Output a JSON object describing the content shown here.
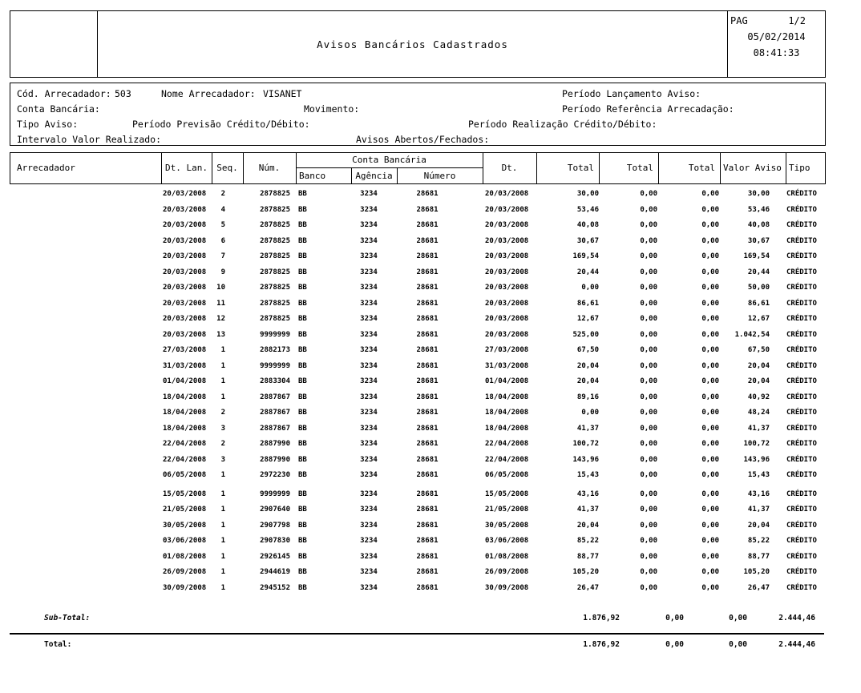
{
  "header": {
    "title": "Avisos Bancários Cadastrados",
    "pag_label": "PAG",
    "page_value": "1/2",
    "date": "05/02/2014",
    "time": "08:41:33"
  },
  "filters": {
    "cod_arrecadador_label": "Cód. Arrecadador:",
    "cod_arrecadador_value": "503",
    "nome_arrecadador_label": "Nome Arrecadador:",
    "nome_arrecadador_value": "VISANET",
    "periodo_lancamento_label": "Período Lançamento Aviso:",
    "conta_bancaria_label": "Conta Bancária:",
    "movimento_label": "Movimento:",
    "periodo_referencia_label": "Período Referência Arrecadação:",
    "tipo_aviso_label": "Tipo Aviso:",
    "periodo_previsao_label": "Período Previsão Crédito/Débito:",
    "periodo_realizacao_label": "Período Realização Crédito/Débito:",
    "intervalo_valor_label": "Intervalo Valor Realizado:",
    "avisos_abertos_label": "Avisos Abertos/Fechados:"
  },
  "table": {
    "columns": {
      "arrecadador": "Arrecadador",
      "dt_lan": "Dt. Lan.",
      "seq": "Seq.",
      "num": "Núm.",
      "conta_bancaria_group": "Conta Bancária",
      "banco": "Banco",
      "agencia": "Agência",
      "numero": "Número",
      "dt": "Dt.",
      "total1": "Total",
      "total2": "Total",
      "total3": "Total",
      "valor_aviso": "Valor Aviso",
      "tipo": "Tipo"
    },
    "rows": [
      {
        "dt_lan": "20/03/2008",
        "seq": "2",
        "num": "2878825",
        "banco": "BB",
        "agencia": "3234",
        "numero": "28681",
        "dt": "20/03/2008",
        "total1": "30,00",
        "total2": "0,00",
        "total3": "0,00",
        "valor_aviso": "30,00",
        "tipo": "CRÉDITO"
      },
      {
        "dt_lan": "20/03/2008",
        "seq": "4",
        "num": "2878825",
        "banco": "BB",
        "agencia": "3234",
        "numero": "28681",
        "dt": "20/03/2008",
        "total1": "53,46",
        "total2": "0,00",
        "total3": "0,00",
        "valor_aviso": "53,46",
        "tipo": "CRÉDITO"
      },
      {
        "dt_lan": "20/03/2008",
        "seq": "5",
        "num": "2878825",
        "banco": "BB",
        "agencia": "3234",
        "numero": "28681",
        "dt": "20/03/2008",
        "total1": "40,08",
        "total2": "0,00",
        "total3": "0,00",
        "valor_aviso": "40,08",
        "tipo": "CRÉDITO"
      },
      {
        "dt_lan": "20/03/2008",
        "seq": "6",
        "num": "2878825",
        "banco": "BB",
        "agencia": "3234",
        "numero": "28681",
        "dt": "20/03/2008",
        "total1": "30,67",
        "total2": "0,00",
        "total3": "0,00",
        "valor_aviso": "30,67",
        "tipo": "CRÉDITO"
      },
      {
        "dt_lan": "20/03/2008",
        "seq": "7",
        "num": "2878825",
        "banco": "BB",
        "agencia": "3234",
        "numero": "28681",
        "dt": "20/03/2008",
        "total1": "169,54",
        "total2": "0,00",
        "total3": "0,00",
        "valor_aviso": "169,54",
        "tipo": "CRÉDITO"
      },
      {
        "dt_lan": "20/03/2008",
        "seq": "9",
        "num": "2878825",
        "banco": "BB",
        "agencia": "3234",
        "numero": "28681",
        "dt": "20/03/2008",
        "total1": "20,44",
        "total2": "0,00",
        "total3": "0,00",
        "valor_aviso": "20,44",
        "tipo": "CRÉDITO"
      },
      {
        "dt_lan": "20/03/2008",
        "seq": "10",
        "num": "2878825",
        "banco": "BB",
        "agencia": "3234",
        "numero": "28681",
        "dt": "20/03/2008",
        "total1": "0,00",
        "total2": "0,00",
        "total3": "0,00",
        "valor_aviso": "50,00",
        "tipo": "CRÉDITO"
      },
      {
        "dt_lan": "20/03/2008",
        "seq": "11",
        "num": "2878825",
        "banco": "BB",
        "agencia": "3234",
        "numero": "28681",
        "dt": "20/03/2008",
        "total1": "86,61",
        "total2": "0,00",
        "total3": "0,00",
        "valor_aviso": "86,61",
        "tipo": "CRÉDITO"
      },
      {
        "dt_lan": "20/03/2008",
        "seq": "12",
        "num": "2878825",
        "banco": "BB",
        "agencia": "3234",
        "numero": "28681",
        "dt": "20/03/2008",
        "total1": "12,67",
        "total2": "0,00",
        "total3": "0,00",
        "valor_aviso": "12,67",
        "tipo": "CRÉDITO"
      },
      {
        "dt_lan": "20/03/2008",
        "seq": "13",
        "num": "9999999",
        "banco": "BB",
        "agencia": "3234",
        "numero": "28681",
        "dt": "20/03/2008",
        "total1": "525,00",
        "total2": "0,00",
        "total3": "0,00",
        "valor_aviso": "1.042,54",
        "tipo": "CRÉDITO"
      },
      {
        "dt_lan": "27/03/2008",
        "seq": "1",
        "num": "2882173",
        "banco": "BB",
        "agencia": "3234",
        "numero": "28681",
        "dt": "27/03/2008",
        "total1": "67,50",
        "total2": "0,00",
        "total3": "0,00",
        "valor_aviso": "67,50",
        "tipo": "CRÉDITO"
      },
      {
        "dt_lan": "31/03/2008",
        "seq": "1",
        "num": "9999999",
        "banco": "BB",
        "agencia": "3234",
        "numero": "28681",
        "dt": "31/03/2008",
        "total1": "20,04",
        "total2": "0,00",
        "total3": "0,00",
        "valor_aviso": "20,04",
        "tipo": "CRÉDITO"
      },
      {
        "dt_lan": "01/04/2008",
        "seq": "1",
        "num": "2883304",
        "banco": "BB",
        "agencia": "3234",
        "numero": "28681",
        "dt": "01/04/2008",
        "total1": "20,04",
        "total2": "0,00",
        "total3": "0,00",
        "valor_aviso": "20,04",
        "tipo": "CRÉDITO"
      },
      {
        "dt_lan": "18/04/2008",
        "seq": "1",
        "num": "2887867",
        "banco": "BB",
        "agencia": "3234",
        "numero": "28681",
        "dt": "18/04/2008",
        "total1": "89,16",
        "total2": "0,00",
        "total3": "0,00",
        "valor_aviso": "40,92",
        "tipo": "CRÉDITO"
      },
      {
        "dt_lan": "18/04/2008",
        "seq": "2",
        "num": "2887867",
        "banco": "BB",
        "agencia": "3234",
        "numero": "28681",
        "dt": "18/04/2008",
        "total1": "0,00",
        "total2": "0,00",
        "total3": "0,00",
        "valor_aviso": "48,24",
        "tipo": "CRÉDITO"
      },
      {
        "dt_lan": "18/04/2008",
        "seq": "3",
        "num": "2887867",
        "banco": "BB",
        "agencia": "3234",
        "numero": "28681",
        "dt": "18/04/2008",
        "total1": "41,37",
        "total2": "0,00",
        "total3": "0,00",
        "valor_aviso": "41,37",
        "tipo": "CRÉDITO"
      },
      {
        "dt_lan": "22/04/2008",
        "seq": "2",
        "num": "2887990",
        "banco": "BB",
        "agencia": "3234",
        "numero": "28681",
        "dt": "22/04/2008",
        "total1": "100,72",
        "total2": "0,00",
        "total3": "0,00",
        "valor_aviso": "100,72",
        "tipo": "CRÉDITO"
      },
      {
        "dt_lan": "22/04/2008",
        "seq": "3",
        "num": "2887990",
        "banco": "BB",
        "agencia": "3234",
        "numero": "28681",
        "dt": "22/04/2008",
        "total1": "143,96",
        "total2": "0,00",
        "total3": "0,00",
        "valor_aviso": "143,96",
        "tipo": "CRÉDITO"
      },
      {
        "dt_lan": "06/05/2008",
        "seq": "1",
        "num": "2972230",
        "banco": "BB",
        "agencia": "3234",
        "numero": "28681",
        "dt": "06/05/2008",
        "total1": "15,43",
        "total2": "0,00",
        "total3": "0,00",
        "valor_aviso": "15,43",
        "tipo": "CRÉDITO"
      },
      {
        "dt_lan": "15/05/2008",
        "seq": "1",
        "num": "9999999",
        "banco": "BB",
        "agencia": "3234",
        "numero": "28681",
        "dt": "15/05/2008",
        "total1": "43,16",
        "total2": "0,00",
        "total3": "0,00",
        "valor_aviso": "43,16",
        "tipo": "CRÉDITO"
      },
      {
        "dt_lan": "21/05/2008",
        "seq": "1",
        "num": "2907640",
        "banco": "BB",
        "agencia": "3234",
        "numero": "28681",
        "dt": "21/05/2008",
        "total1": "41,37",
        "total2": "0,00",
        "total3": "0,00",
        "valor_aviso": "41,37",
        "tipo": "CRÉDITO"
      },
      {
        "dt_lan": "30/05/2008",
        "seq": "1",
        "num": "2907798",
        "banco": "BB",
        "agencia": "3234",
        "numero": "28681",
        "dt": "30/05/2008",
        "total1": "20,04",
        "total2": "0,00",
        "total3": "0,00",
        "valor_aviso": "20,04",
        "tipo": "CRÉDITO"
      },
      {
        "dt_lan": "03/06/2008",
        "seq": "1",
        "num": "2907830",
        "banco": "BB",
        "agencia": "3234",
        "numero": "28681",
        "dt": "03/06/2008",
        "total1": "85,22",
        "total2": "0,00",
        "total3": "0,00",
        "valor_aviso": "85,22",
        "tipo": "CRÉDITO"
      },
      {
        "dt_lan": "01/08/2008",
        "seq": "1",
        "num": "2926145",
        "banco": "BB",
        "agencia": "3234",
        "numero": "28681",
        "dt": "01/08/2008",
        "total1": "88,77",
        "total2": "0,00",
        "total3": "0,00",
        "valor_aviso": "88,77",
        "tipo": "CRÉDITO"
      },
      {
        "dt_lan": "26/09/2008",
        "seq": "1",
        "num": "2944619",
        "banco": "BB",
        "agencia": "3234",
        "numero": "28681",
        "dt": "26/09/2008",
        "total1": "105,20",
        "total2": "0,00",
        "total3": "0,00",
        "valor_aviso": "105,20",
        "tipo": "CRÉDITO"
      },
      {
        "dt_lan": "30/09/2008",
        "seq": "1",
        "num": "2945152",
        "banco": "BB",
        "agencia": "3234",
        "numero": "28681",
        "dt": "30/09/2008",
        "total1": "26,47",
        "total2": "0,00",
        "total3": "0,00",
        "valor_aviso": "26,47",
        "tipo": "CRÉDITO"
      }
    ]
  },
  "footer": {
    "subtotal_label": "Sub-Total:",
    "subtotal": [
      "1.876,92",
      "0,00",
      "0,00",
      "2.444,46"
    ],
    "total_label": "Total:",
    "total": [
      "1.876,92",
      "0,00",
      "0,00",
      "2.444,46"
    ]
  }
}
